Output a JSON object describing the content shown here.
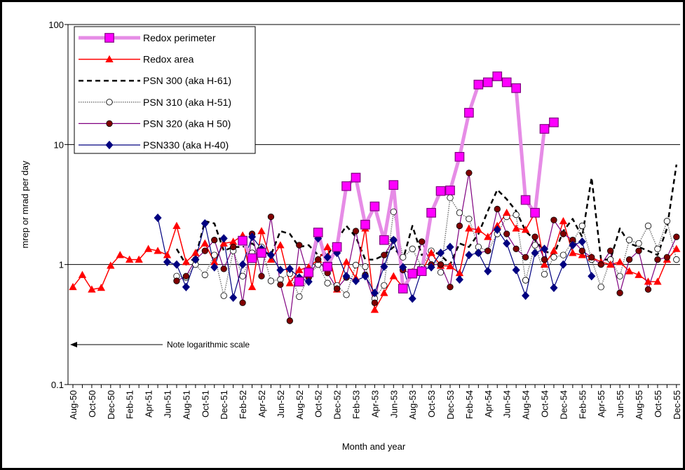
{
  "chart_data": {
    "type": "line",
    "y_label": "mrep or mrad per day",
    "x_label": "Month and year",
    "annotation": "Note logarithmic scale",
    "log_scale": true,
    "grid": true,
    "legend": "top-left",
    "ylim": [
      0.1,
      100
    ],
    "yticks": [
      0.1,
      1,
      10,
      100
    ],
    "categories": [
      "Aug-50",
      null,
      "Oct-50",
      null,
      "Dec-50",
      null,
      "Feb-51",
      null,
      "Apr-51",
      null,
      "Jun-51",
      null,
      "Aug-51",
      null,
      "Oct-51",
      null,
      "Dec-51",
      null,
      "Feb-52",
      null,
      "Apr-52",
      null,
      "Jun-52",
      null,
      "Aug-52",
      null,
      "Oct-52",
      null,
      "Dec-52",
      null,
      "Feb-53",
      null,
      "Apr-53",
      null,
      "Jun-53",
      null,
      "Aug-53",
      null,
      "Oct-53",
      null,
      "Dec-53",
      null,
      "Feb-54",
      null,
      "Apr-54",
      null,
      "Jun-54",
      null,
      "Aug-54",
      null,
      "Oct-54",
      null,
      "Dec-54",
      null,
      "Feb-55",
      null,
      "Apr-55",
      null,
      "Jun-55",
      null,
      "Aug-55",
      null,
      "Oct-55",
      null,
      "Dec-55"
    ],
    "series": [
      {
        "name": "Redox perimeter",
        "color": "#e68ce6",
        "marker": "square",
        "marker_color": "#ff00ff",
        "line_width": 5,
        "dash": "none",
        "values": [
          null,
          null,
          null,
          null,
          null,
          null,
          null,
          null,
          null,
          null,
          null,
          null,
          null,
          null,
          null,
          null,
          null,
          null,
          1.58,
          1.13,
          1.25,
          null,
          null,
          null,
          0.72,
          0.86,
          1.85,
          0.96,
          1.4,
          4.5,
          5.3,
          2.15,
          3.05,
          1.6,
          4.6,
          0.63,
          0.84,
          0.88,
          2.7,
          4.1,
          4.15,
          7.9,
          18.4,
          31.6,
          33,
          37,
          33,
          29.5,
          3.45,
          2.7,
          13.5,
          15.3,
          null,
          null,
          null,
          null,
          null,
          null,
          null,
          null,
          null,
          null,
          null,
          null,
          null
        ]
      },
      {
        "name": "Redox area",
        "color": "#ff0000",
        "marker": "triangle",
        "marker_color": "#ff0000",
        "line_width": 1.5,
        "dash": "none",
        "values": [
          0.65,
          0.82,
          0.62,
          0.64,
          0.98,
          1.2,
          1.1,
          1.1,
          1.35,
          1.3,
          1.2,
          2.1,
          1.05,
          1.25,
          1.5,
          1.05,
          1.5,
          1.55,
          1.75,
          0.65,
          1.9,
          1.1,
          1.45,
          0.7,
          0.9,
          0.95,
          1.1,
          1.4,
          0.62,
          1.05,
          0.77,
          2.0,
          0.42,
          0.58,
          0.8,
          0.65,
          0.87,
          0.87,
          1.25,
          0.98,
          0.97,
          0.85,
          2.0,
          1.95,
          1.7,
          2.1,
          2.7,
          2.0,
          1.95,
          2.7,
          1.0,
          1.3,
          2.3,
          1.25,
          1.2,
          1.15,
          1.05,
          1.0,
          1.05,
          0.88,
          0.82,
          0.72,
          0.72,
          1.1,
          1.35
        ]
      },
      {
        "name": "PSN 300 (aka H-61)",
        "color": "#000000",
        "marker": "none",
        "marker_color": "#000000",
        "line_width": 2.5,
        "dash": "7 5",
        "values": [
          null,
          null,
          null,
          null,
          null,
          null,
          null,
          null,
          null,
          null,
          null,
          1.35,
          1.0,
          1.15,
          2.3,
          2.2,
          1.3,
          1.4,
          1.4,
          1.5,
          1.3,
          1.2,
          1.9,
          1.8,
          1.4,
          1.45,
          1.2,
          1.2,
          1.6,
          2.1,
          1.7,
          1.1,
          1.1,
          1.2,
          1.4,
          1.1,
          2.1,
          1.2,
          1.3,
          1.2,
          1.0,
          1.5,
          1.4,
          1.8,
          2.8,
          4.2,
          3.5,
          2.8,
          1.9,
          1.6,
          1.3,
          1.2,
          1.9,
          2.4,
          1.7,
          5.3,
          1.1,
          1.1,
          2.0,
          1.5,
          1.4,
          1.3,
          1.2,
          2.0,
          6.8
        ]
      },
      {
        "name": "PSN 310 (aka H-51)",
        "color": "#777777",
        "marker": "circle",
        "marker_color": "#ffffff",
        "line_width": 1.5,
        "dash": "1.5 1.5",
        "values": [
          null,
          null,
          null,
          null,
          null,
          null,
          null,
          null,
          null,
          null,
          null,
          0.8,
          0.78,
          1.0,
          0.82,
          1.2,
          0.55,
          1.3,
          0.8,
          1.25,
          1.4,
          0.73,
          0.75,
          0.84,
          0.54,
          0.8,
          1.0,
          0.7,
          0.67,
          0.56,
          0.99,
          0.96,
          0.52,
          0.67,
          2.75,
          1.15,
          1.35,
          0.95,
          1.3,
          0.86,
          3.6,
          2.7,
          2.4,
          1.4,
          1.3,
          1.8,
          2.5,
          2.6,
          0.74,
          1.45,
          0.83,
          1.15,
          1.2,
          1.55,
          2.1,
          1.1,
          0.65,
          1.1,
          0.8,
          1.6,
          1.5,
          2.1,
          1.35,
          2.3,
          1.1
        ]
      },
      {
        "name": "PSN 320 (aka H 50)",
        "color": "#800080",
        "marker": "circle",
        "marker_color": "#800000",
        "line_width": 1.2,
        "dash": "none",
        "values": [
          null,
          null,
          null,
          null,
          null,
          null,
          null,
          null,
          null,
          null,
          null,
          0.73,
          0.8,
          1.1,
          1.3,
          1.6,
          0.92,
          1.4,
          0.48,
          1.8,
          0.8,
          2.5,
          0.68,
          0.34,
          1.45,
          0.78,
          1.1,
          0.85,
          0.63,
          0.78,
          1.9,
          0.82,
          0.48,
          1.2,
          1.6,
          0.9,
          0.83,
          1.55,
          1.0,
          1.0,
          0.65,
          2.1,
          5.8,
          1.25,
          1.3,
          2.9,
          1.8,
          1.35,
          1.15,
          1.7,
          1.1,
          2.35,
          1.8,
          1.6,
          1.3,
          1.15,
          1.0,
          1.3,
          0.58,
          1.1,
          1.3,
          0.62,
          1.1,
          1.15,
          1.7
        ]
      },
      {
        "name": "PSN330 (aka H-40)",
        "color": "#000080",
        "marker": "diamond",
        "marker_color": "#000080",
        "line_width": 1.2,
        "dash": "none",
        "values": [
          null,
          null,
          null,
          null,
          null,
          null,
          null,
          null,
          null,
          2.45,
          1.05,
          1.0,
          0.65,
          1.1,
          2.2,
          0.95,
          1.65,
          0.53,
          1.0,
          1.7,
          1.35,
          1.2,
          0.9,
          0.92,
          0.78,
          0.72,
          1.65,
          1.15,
          1.25,
          0.8,
          0.73,
          0.8,
          0.58,
          0.96,
          1.6,
          0.95,
          0.52,
          0.9,
          0.95,
          1.25,
          1.4,
          0.75,
          1.2,
          1.25,
          0.88,
          1.95,
          1.5,
          0.9,
          0.55,
          1.25,
          1.35,
          0.64,
          1.0,
          1.45,
          1.55,
          0.8,
          null,
          null,
          null,
          null,
          null,
          null,
          null,
          null,
          null
        ]
      }
    ]
  }
}
